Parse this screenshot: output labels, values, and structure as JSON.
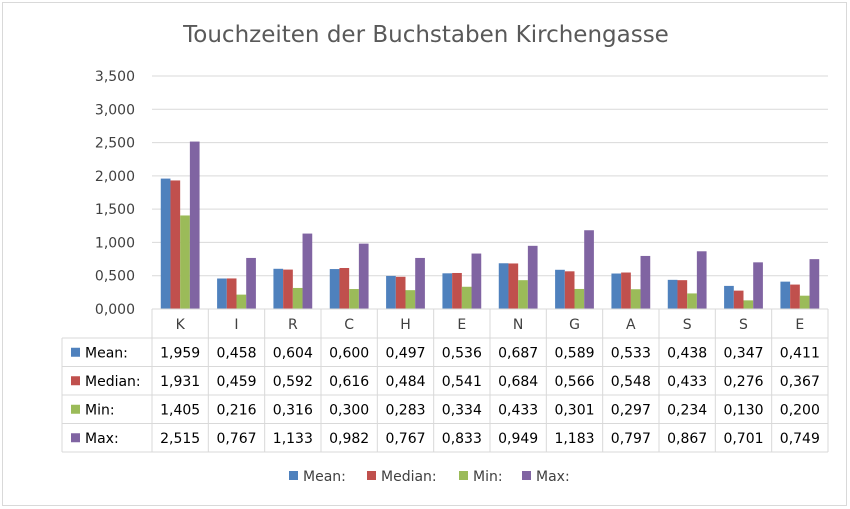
{
  "chart_data": {
    "type": "bar",
    "title": "Touchzeiten der Buchstaben Kirchengasse",
    "xlabel": "",
    "ylabel": "",
    "ylim": [
      0,
      3.5
    ],
    "y_ticks": [
      "0,000",
      "0,500",
      "1,000",
      "1,500",
      "2,000",
      "2,500",
      "3,000",
      "3,500"
    ],
    "categories": [
      "K",
      "I",
      "R",
      "C",
      "H",
      "E",
      "N",
      "G",
      "A",
      "S",
      "S",
      "E"
    ],
    "grid": true,
    "legend_position": "bottom",
    "data_table": true,
    "series": [
      {
        "name": "Mean:",
        "color": "#4f81bd",
        "values": [
          1.959,
          0.458,
          0.604,
          0.6,
          0.497,
          0.536,
          0.687,
          0.589,
          0.533,
          0.438,
          0.347,
          0.411
        ],
        "labels": [
          "1,959",
          "0,458",
          "0,604",
          "0,600",
          "0,497",
          "0,536",
          "0,687",
          "0,589",
          "0,533",
          "0,438",
          "0,347",
          "0,411"
        ]
      },
      {
        "name": "Median:",
        "color": "#c0504d",
        "values": [
          1.931,
          0.459,
          0.592,
          0.616,
          0.484,
          0.541,
          0.684,
          0.566,
          0.548,
          0.433,
          0.276,
          0.367
        ],
        "labels": [
          "1,931",
          "0,459",
          "0,592",
          "0,616",
          "0,484",
          "0,541",
          "0,684",
          "0,566",
          "0,548",
          "0,433",
          "0,276",
          "0,367"
        ]
      },
      {
        "name": "Min:",
        "color": "#9bbb59",
        "values": [
          1.405,
          0.216,
          0.316,
          0.3,
          0.283,
          0.334,
          0.433,
          0.301,
          0.297,
          0.234,
          0.13,
          0.2
        ],
        "labels": [
          "1,405",
          "0,216",
          "0,316",
          "0,300",
          "0,283",
          "0,334",
          "0,433",
          "0,301",
          "0,297",
          "0,234",
          "0,130",
          "0,200"
        ]
      },
      {
        "name": "Max:",
        "color": "#8064a2",
        "values": [
          2.515,
          0.767,
          1.133,
          0.982,
          0.767,
          0.833,
          0.949,
          1.183,
          0.797,
          0.867,
          0.701,
          0.749
        ],
        "labels": [
          "2,515",
          "0,767",
          "1,133",
          "0,982",
          "0,767",
          "0,833",
          "0,949",
          "1,183",
          "0,797",
          "0,867",
          "0,701",
          "0,749"
        ]
      }
    ]
  }
}
